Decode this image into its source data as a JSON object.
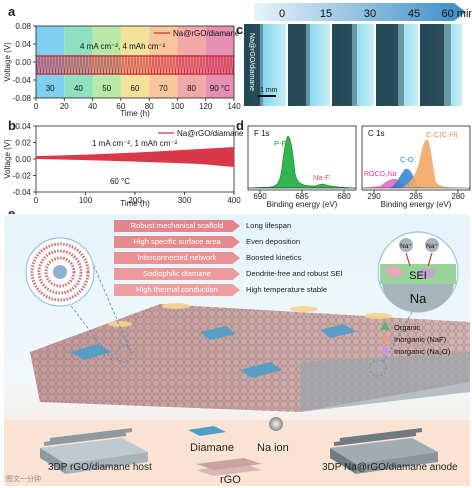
{
  "panels": {
    "a": "a",
    "b": "b",
    "c": "c",
    "d": "d",
    "e": "e"
  },
  "panel_a": {
    "legend": "Na@rGO/diamane",
    "condition": "4 mA cm⁻², 4 mAh cm⁻²",
    "temps": [
      "30",
      "40",
      "50",
      "60",
      "70",
      "80",
      "90 °C"
    ],
    "band_colors": [
      "#7fd0f0",
      "#8fe0c0",
      "#b8e8a8",
      "#f4e29a",
      "#f7c79b",
      "#f3a8a8",
      "#e58fb4"
    ],
    "xlabel": "Time (h)",
    "ylabel": "Voltage (V)",
    "xticks": [
      "0",
      "20",
      "40",
      "60",
      "80",
      "100",
      "120",
      "140"
    ],
    "yticks": [
      "0.08",
      "0.04",
      "0.00",
      "-0.04",
      "-0.08"
    ]
  },
  "panel_b": {
    "legend": "Na@rGO/diamane",
    "condition": "1 mA cm⁻², 1 mAh cm⁻²",
    "temp": "60 °C",
    "xlabel": "Time (h)",
    "ylabel": "Voltage (V)",
    "xticks": [
      "0",
      "100",
      "200",
      "300",
      "400"
    ],
    "yticks": [
      "0.04",
      "0.02",
      "0.00",
      "-0.02",
      "-0.04"
    ]
  },
  "panel_c": {
    "times": [
      "0",
      "15",
      "30",
      "45",
      "60 min"
    ],
    "side_label": "Na@rGO/diamane",
    "scale": "1 mm"
  },
  "panel_d": {
    "f1s": {
      "title": "F 1s",
      "peaks": [
        "P-F",
        "Na-F"
      ],
      "xticks": [
        "690",
        "685",
        "680"
      ],
      "xlabel": "Binding energy (eV)"
    },
    "c1s": {
      "title": "C 1s",
      "peaks": [
        "C-C(C-H)",
        "C-O",
        "ROCO₂Na"
      ],
      "xticks": [
        "290",
        "285",
        "280"
      ],
      "xlabel": "Binding energy (eV)"
    }
  },
  "panel_e": {
    "features": [
      "Robust mechanical scaffold",
      "High specific surface area",
      "Interconnected network",
      "Sodiophilic diamane",
      "High thermal conduction"
    ],
    "results": [
      "Long lifespan",
      "Even deposition",
      "Boosted kinetics",
      "Dendrite-free and robust SEI",
      "High temperature stable"
    ],
    "sei": {
      "ion1": "Na⁺",
      "ion2": "Na⁺",
      "sei": "SEI",
      "metal": "Na"
    },
    "legend": [
      "Organic",
      "Inorganic (NaF)",
      "Inorganic (Na₂O)"
    ],
    "bottom": {
      "host": "3DP rGO/diamane host",
      "diamane": "Diamane",
      "naion": "Na ion",
      "rgo": "rGO",
      "anode": "3DP Na@rGO/diamane anode"
    }
  },
  "watermark": "图文一分钟"
}
